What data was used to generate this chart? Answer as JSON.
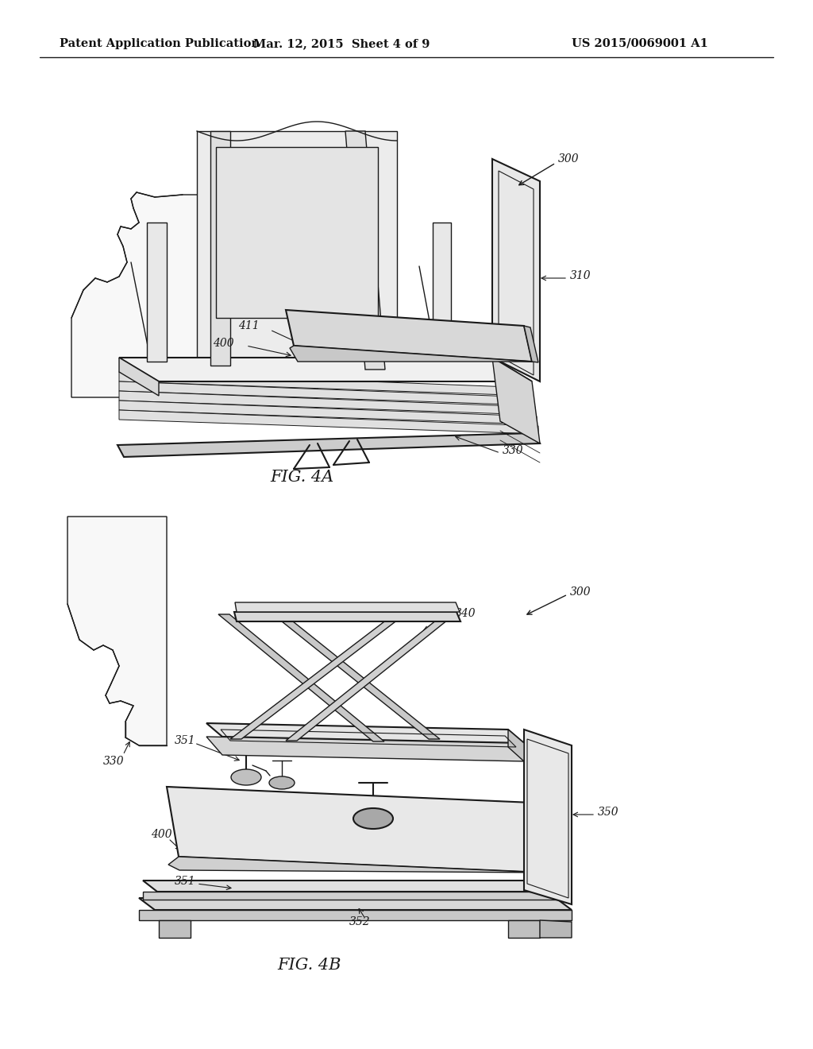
{
  "background_color": "#ffffff",
  "header_left": "Patent Application Publication",
  "header_center": "Mar. 12, 2015  Sheet 4 of 9",
  "header_right": "US 2015/0069001 A1",
  "header_fontsize": 10.5,
  "fig4a_label": "FIG. 4A",
  "fig4b_label": "FIG. 4B",
  "label_fontsize": 15,
  "annotation_fontsize": 10
}
